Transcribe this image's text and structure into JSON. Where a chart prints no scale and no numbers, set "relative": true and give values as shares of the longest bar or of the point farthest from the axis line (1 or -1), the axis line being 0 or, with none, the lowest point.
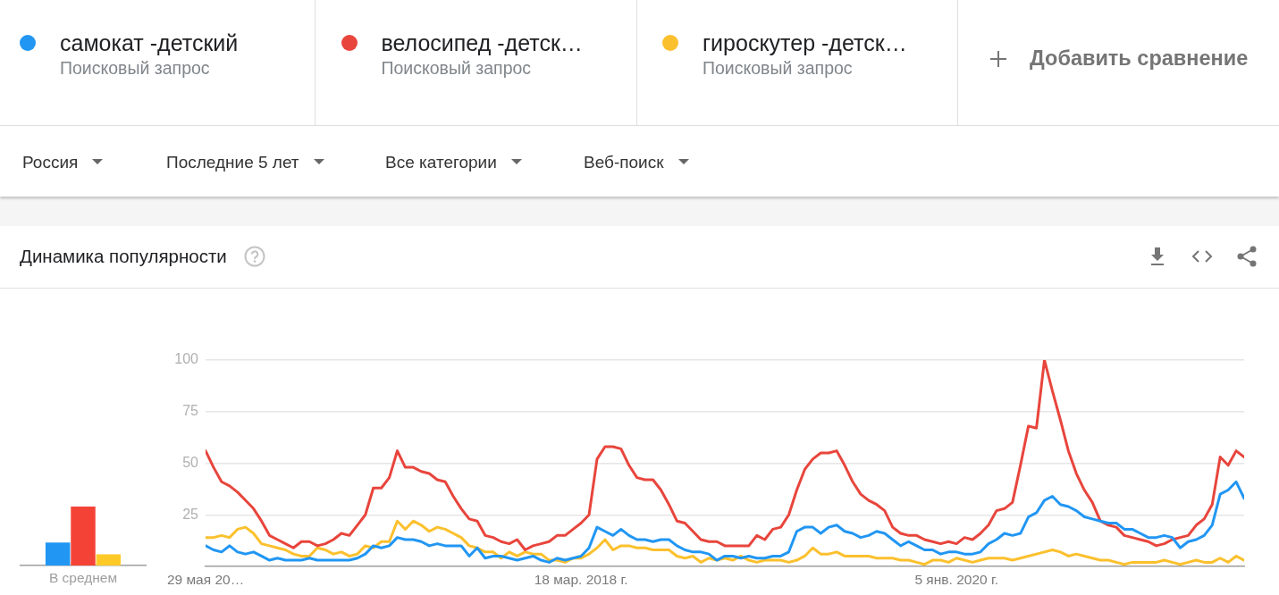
{
  "chart_data": [
    {
      "type": "bar",
      "relative": true,
      "categories": [
        "В среднем"
      ],
      "series": [
        {
          "color": "#2196f3",
          "values": [
            0.39
          ]
        },
        {
          "color": "#f44336",
          "values": [
            1
          ]
        },
        {
          "color": "#ffca28",
          "values": [
            0.19
          ]
        }
      ]
    },
    {
      "type": "line",
      "title": "Динамика популярности",
      "legend": "top",
      "annotations": [
        "Поисковый запрос",
        "Поисковый запрос",
        "Поисковый запрос",
        "Добавить сравнение",
        "Россия",
        "Последние 5 лет",
        "Все категории",
        "Веб-поиск"
      ],
      "x": [
        "2016-05-29",
        "2016-06-12",
        "2016-06-26",
        "2016-07-10",
        "2016-07-24",
        "2016-08-07",
        "2016-08-21",
        "2016-09-04",
        "2016-09-18",
        "2016-10-02",
        "2016-10-16",
        "2016-10-30",
        "2016-11-13",
        "2016-11-27",
        "2016-12-11",
        "2016-12-25",
        "2017-01-08",
        "2017-01-22",
        "2017-02-05",
        "2017-02-19",
        "2017-03-05",
        "2017-03-19",
        "2017-04-02",
        "2017-04-16",
        "2017-04-30",
        "2017-05-14",
        "2017-05-28",
        "2017-06-11",
        "2017-06-25",
        "2017-07-09",
        "2017-07-23",
        "2017-08-06",
        "2017-08-20",
        "2017-09-03",
        "2017-09-17",
        "2017-10-01",
        "2017-10-15",
        "2017-10-29",
        "2017-11-12",
        "2017-11-26",
        "2017-12-10",
        "2017-12-24",
        "2018-01-07",
        "2018-01-21",
        "2018-02-04",
        "2018-02-18",
        "2018-03-04",
        "2018-03-18",
        "2018-04-01",
        "2018-04-15",
        "2018-04-29",
        "2018-05-13",
        "2018-05-27",
        "2018-06-10",
        "2018-06-24",
        "2018-07-08",
        "2018-07-22",
        "2018-08-05",
        "2018-08-19",
        "2018-09-02",
        "2018-09-16",
        "2018-09-30",
        "2018-10-14",
        "2018-10-28",
        "2018-11-11",
        "2018-11-25",
        "2018-12-09",
        "2018-12-23",
        "2019-01-06",
        "2019-01-20",
        "2019-02-03",
        "2019-02-17",
        "2019-03-03",
        "2019-03-17",
        "2019-03-31",
        "2019-04-14",
        "2019-04-28",
        "2019-05-12",
        "2019-05-26",
        "2019-06-09",
        "2019-06-23",
        "2019-07-07",
        "2019-07-21",
        "2019-08-04",
        "2019-08-18",
        "2019-09-01",
        "2019-09-15",
        "2019-09-29",
        "2019-10-13",
        "2019-10-27",
        "2019-11-10",
        "2019-11-24",
        "2019-12-08",
        "2019-12-22",
        "2020-01-05",
        "2020-01-19",
        "2020-02-02",
        "2020-02-16",
        "2020-03-01",
        "2020-03-15",
        "2020-03-29",
        "2020-04-12",
        "2020-04-26",
        "2020-05-10",
        "2020-05-24",
        "2020-06-07",
        "2020-06-21",
        "2020-07-05",
        "2020-07-19",
        "2020-08-02",
        "2020-08-16",
        "2020-08-30",
        "2020-09-13",
        "2020-09-27",
        "2020-10-11",
        "2020-10-25",
        "2020-11-08",
        "2020-11-22",
        "2020-12-06",
        "2020-12-20",
        "2021-01-03",
        "2021-01-17",
        "2021-01-31",
        "2021-02-14",
        "2021-02-28",
        "2021-03-14",
        "2021-03-28",
        "2021-04-11",
        "2021-04-25",
        "2021-05-09",
        "2021-05-23"
      ],
      "xlim": [
        "2016-05-29",
        "2021-05-23"
      ],
      "xticks": [
        {
          "value": "2016-05-29",
          "label": "29 мая 20…"
        },
        {
          "value": "2018-03-18",
          "label": "18 мар. 2018 г."
        },
        {
          "value": "2020-01-05",
          "label": "5 янв. 2020 г."
        }
      ],
      "ylim": [
        0,
        100
      ],
      "yticks": [
        25,
        50,
        75,
        100
      ],
      "grid": "y",
      "series": [
        {
          "name": "самокат -детский",
          "color": "#2196f3",
          "values": [
            10,
            8,
            7,
            10,
            7,
            6,
            7,
            5,
            3,
            4,
            3,
            3,
            3,
            4,
            3,
            3,
            3,
            3,
            3,
            4,
            6,
            10,
            9,
            10,
            14,
            13,
            13,
            12,
            10,
            11,
            10,
            10,
            10,
            5,
            9,
            4,
            5,
            5,
            4,
            3,
            4,
            5,
            3,
            2,
            4,
            3,
            4,
            5,
            9,
            19,
            17,
            15,
            18,
            15,
            13,
            13,
            12,
            13,
            13,
            10,
            8,
            7,
            7,
            6,
            3,
            5,
            5,
            4,
            5,
            4,
            4,
            5,
            5,
            7,
            17,
            19,
            19,
            16,
            19,
            20,
            17,
            16,
            14,
            15,
            17,
            16,
            13,
            10,
            12,
            10,
            8,
            8,
            6,
            7,
            7,
            6,
            6,
            7,
            11,
            13,
            16,
            15,
            16,
            24,
            26,
            32,
            34,
            30,
            29,
            27,
            24,
            23,
            22,
            21,
            21,
            18,
            18,
            16,
            14,
            14,
            15,
            14,
            9,
            12,
            13,
            15,
            20,
            35,
            37,
            41,
            33
          ]
        },
        {
          "name": "велосипед -детск…",
          "color": "#e8453c",
          "values": [
            56,
            48,
            41,
            39,
            36,
            32,
            28,
            22,
            15,
            13,
            11,
            9,
            12,
            12,
            10,
            11,
            13,
            16,
            15,
            20,
            25,
            38,
            38,
            43,
            56,
            48,
            48,
            46,
            45,
            42,
            41,
            34,
            28,
            23,
            22,
            15,
            14,
            12,
            11,
            13,
            8,
            10,
            11,
            12,
            15,
            15,
            18,
            21,
            25,
            52,
            58,
            58,
            57,
            49,
            43,
            42,
            42,
            37,
            30,
            22,
            21,
            17,
            13,
            12,
            12,
            10,
            10,
            10,
            10,
            15,
            13,
            18,
            19,
            25,
            37,
            47,
            52,
            55,
            55,
            56,
            49,
            41,
            35,
            32,
            30,
            27,
            19,
            16,
            15,
            15,
            13,
            12,
            11,
            12,
            11,
            14,
            13,
            16,
            20,
            27,
            28,
            31,
            49,
            68,
            67,
            100,
            85,
            71,
            56,
            45,
            37,
            31,
            22,
            20,
            19,
            15,
            14,
            13,
            12,
            10,
            11,
            13,
            14,
            15,
            20,
            23,
            30,
            53,
            49,
            56,
            53
          ]
        },
        {
          "name": "гироскутер -детск…",
          "color": "#fbc02d",
          "values": [
            14,
            14,
            15,
            14,
            18,
            19,
            16,
            11,
            10,
            9,
            8,
            6,
            5,
            5,
            9,
            8,
            6,
            7,
            5,
            6,
            10,
            9,
            12,
            12,
            22,
            18,
            22,
            20,
            17,
            19,
            18,
            16,
            14,
            10,
            9,
            7,
            7,
            4,
            7,
            5,
            7,
            6,
            6,
            3,
            3,
            2,
            4,
            4,
            6,
            9,
            13,
            8,
            10,
            10,
            9,
            9,
            8,
            8,
            8,
            5,
            4,
            5,
            2,
            4,
            3,
            4,
            3,
            5,
            3,
            2,
            3,
            3,
            3,
            2,
            3,
            5,
            9,
            6,
            6,
            7,
            5,
            5,
            5,
            5,
            4,
            4,
            4,
            3,
            3,
            2,
            1,
            3,
            3,
            2,
            4,
            3,
            2,
            3,
            4,
            4,
            4,
            3,
            4,
            5,
            6,
            7,
            8,
            7,
            5,
            6,
            5,
            4,
            3,
            3,
            2,
            1,
            2,
            2,
            2,
            2,
            3,
            2,
            1,
            2,
            3,
            2,
            2,
            4,
            2,
            5,
            3
          ]
        }
      ]
    }
  ]
}
